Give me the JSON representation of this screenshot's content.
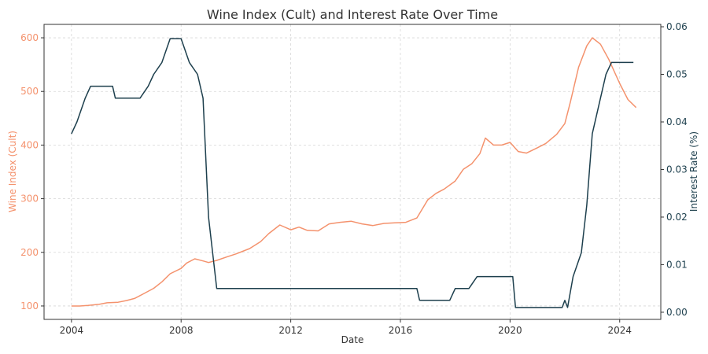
{
  "chart_data": {
    "type": "line",
    "title": "Wine Index (Cult) and Interest Rate Over Time",
    "xlabel": "Date",
    "ylabel_left": "Wine Index (Cult)",
    "ylabel_right": "Interest Rate (%)",
    "x_ticks": [
      "2004",
      "2008",
      "2012",
      "2016",
      "2020",
      "2024"
    ],
    "y_left_ticks": [
      "100",
      "200",
      "300",
      "400",
      "500",
      "600"
    ],
    "y_right_ticks": [
      "0.00",
      "0.01",
      "0.02",
      "0.03",
      "0.04",
      "0.05",
      "0.06"
    ],
    "xlim": [
      2003.0,
      2025.5
    ],
    "ylim_left": [
      75,
      625
    ],
    "ylim_right": [
      -0.0015,
      0.0605
    ],
    "grid": true,
    "colors": {
      "wine": "#f4926d",
      "rate": "#1d3f4d",
      "axis": "#333333",
      "grid": "#d6d6d6"
    },
    "series": [
      {
        "axis": "left",
        "points": [
          [
            2004.0,
            100
          ],
          [
            2004.3,
            100
          ],
          [
            2004.6,
            101
          ],
          [
            2005.0,
            103
          ],
          [
            2005.3,
            106
          ],
          [
            2005.7,
            107
          ],
          [
            2006.0,
            110
          ],
          [
            2006.3,
            114
          ],
          [
            2006.6,
            122
          ],
          [
            2007.0,
            133
          ],
          [
            2007.3,
            145
          ],
          [
            2007.6,
            160
          ],
          [
            2008.0,
            170
          ],
          [
            2008.2,
            180
          ],
          [
            2008.5,
            188
          ],
          [
            2008.8,
            184
          ],
          [
            2009.0,
            181
          ],
          [
            2009.3,
            185
          ],
          [
            2009.7,
            192
          ],
          [
            2010.0,
            197
          ],
          [
            2010.5,
            207
          ],
          [
            2010.9,
            220
          ],
          [
            2011.2,
            235
          ],
          [
            2011.6,
            251
          ],
          [
            2012.0,
            242
          ],
          [
            2012.3,
            247
          ],
          [
            2012.6,
            241
          ],
          [
            2013.0,
            240
          ],
          [
            2013.4,
            253
          ],
          [
            2013.8,
            256
          ],
          [
            2014.2,
            258
          ],
          [
            2014.6,
            253
          ],
          [
            2015.0,
            250
          ],
          [
            2015.4,
            254
          ],
          [
            2015.8,
            255
          ],
          [
            2016.2,
            256
          ],
          [
            2016.6,
            264
          ],
          [
            2017.0,
            298
          ],
          [
            2017.3,
            310
          ],
          [
            2017.6,
            318
          ],
          [
            2018.0,
            333
          ],
          [
            2018.3,
            355
          ],
          [
            2018.6,
            365
          ],
          [
            2018.9,
            384
          ],
          [
            2019.1,
            413
          ],
          [
            2019.4,
            400
          ],
          [
            2019.7,
            400
          ],
          [
            2020.0,
            405
          ],
          [
            2020.3,
            388
          ],
          [
            2020.6,
            385
          ],
          [
            2021.0,
            395
          ],
          [
            2021.3,
            403
          ],
          [
            2021.7,
            420
          ],
          [
            2022.0,
            440
          ],
          [
            2022.2,
            480
          ],
          [
            2022.5,
            545
          ],
          [
            2022.8,
            585
          ],
          [
            2023.0,
            600
          ],
          [
            2023.3,
            588
          ],
          [
            2023.6,
            560
          ],
          [
            2024.0,
            515
          ],
          [
            2024.3,
            485
          ],
          [
            2024.6,
            470
          ]
        ]
      },
      {
        "axis": "right",
        "points": [
          [
            2004.0,
            0.0375
          ],
          [
            2004.2,
            0.04
          ],
          [
            2004.5,
            0.045
          ],
          [
            2004.7,
            0.0475
          ],
          [
            2005.0,
            0.0475
          ],
          [
            2005.5,
            0.0475
          ],
          [
            2005.6,
            0.045
          ],
          [
            2006.0,
            0.045
          ],
          [
            2006.5,
            0.045
          ],
          [
            2006.8,
            0.0475
          ],
          [
            2007.0,
            0.05
          ],
          [
            2007.3,
            0.0525
          ],
          [
            2007.6,
            0.0575
          ],
          [
            2008.0,
            0.0575
          ],
          [
            2008.3,
            0.0525
          ],
          [
            2008.6,
            0.05
          ],
          [
            2008.8,
            0.045
          ],
          [
            2009.0,
            0.02
          ],
          [
            2009.3,
            0.005
          ],
          [
            2010.0,
            0.005
          ],
          [
            2012.0,
            0.005
          ],
          [
            2014.0,
            0.005
          ],
          [
            2016.0,
            0.005
          ],
          [
            2016.6,
            0.005
          ],
          [
            2016.7,
            0.0025
          ],
          [
            2017.8,
            0.0025
          ],
          [
            2018.0,
            0.005
          ],
          [
            2018.5,
            0.005
          ],
          [
            2018.8,
            0.0075
          ],
          [
            2019.5,
            0.0075
          ],
          [
            2020.1,
            0.0075
          ],
          [
            2020.2,
            0.001
          ],
          [
            2021.0,
            0.001
          ],
          [
            2021.9,
            0.001
          ],
          [
            2022.0,
            0.0025
          ],
          [
            2022.1,
            0.001
          ],
          [
            2022.3,
            0.0075
          ],
          [
            2022.6,
            0.0125
          ],
          [
            2022.8,
            0.0225
          ],
          [
            2023.0,
            0.0375
          ],
          [
            2023.3,
            0.045
          ],
          [
            2023.5,
            0.05
          ],
          [
            2023.7,
            0.0525
          ],
          [
            2024.0,
            0.0525
          ],
          [
            2024.5,
            0.0525
          ]
        ]
      }
    ]
  }
}
